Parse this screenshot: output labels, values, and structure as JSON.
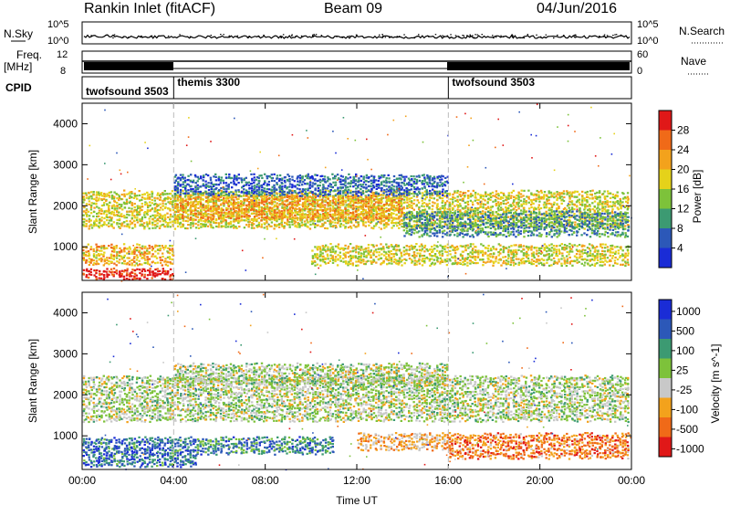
{
  "header": {
    "station": "Rankin Inlet (fitACF)",
    "beam": "Beam 09",
    "date": "04/Jun/2016"
  },
  "aux_panels": {
    "nsky_label": "N.Sky",
    "nsearch_label": "N.Search",
    "freq_label_top": "Freq.",
    "freq_label_bottom": "[MHz]",
    "nave_label": "Nave",
    "cpid_label": "CPID",
    "noise_left_ticks": [
      "10^5",
      "10^0"
    ],
    "noise_right_ticks": [
      "10^5",
      "10^0"
    ],
    "freq_left_ticks": [
      "12",
      "8"
    ],
    "freq_right_ticks": [
      "60",
      "0"
    ]
  },
  "cpid": [
    {
      "name": "twofsound 3503",
      "start_hour": 0,
      "end_hour": 4
    },
    {
      "name": "themis 3300",
      "start_hour": 4,
      "end_hour": 16
    },
    {
      "name": "twofsound 3503",
      "start_hour": 16,
      "end_hour": 24
    }
  ],
  "chart_data": [
    {
      "type": "heatmap",
      "title": "",
      "xlabel": "Time UT",
      "ylabel": "Slant Range [km]",
      "xlim": [
        0,
        24
      ],
      "ylim": [
        180,
        4500
      ],
      "x_ticks": [
        "00:00",
        "04:00",
        "08:00",
        "12:00",
        "16:00",
        "20:00",
        "00:00"
      ],
      "y_ticks": [
        "1000",
        "2000",
        "3000",
        "4000"
      ],
      "colorbar_label": "Power [dB]",
      "colorbar_ticks": [
        "4",
        "8",
        "12",
        "16",
        "20",
        "24",
        "28"
      ],
      "colorscale": [
        "#1a2cd6",
        "#2c58b8",
        "#3c9a72",
        "#7dc23a",
        "#e5d21a",
        "#f3a21c",
        "#f06a18",
        "#e01818"
      ],
      "value_range": [
        0,
        32
      ],
      "regions": [
        {
          "t0": 0,
          "t1": 24,
          "r0": 1500,
          "r1": 2400,
          "level": 0.55
        },
        {
          "t0": 4,
          "t1": 14,
          "r0": 1700,
          "r1": 2300,
          "level": 0.7
        },
        {
          "t0": 14,
          "t1": 24,
          "r0": 1300,
          "r1": 1900,
          "level": 0.3
        },
        {
          "t0": 0,
          "t1": 4,
          "r0": 600,
          "r1": 1100,
          "level": 0.65
        },
        {
          "t0": 0,
          "t1": 4,
          "r0": 180,
          "r1": 500,
          "level": 0.95
        },
        {
          "t0": 10,
          "t1": 24,
          "r0": 600,
          "r1": 1100,
          "level": 0.55
        },
        {
          "t0": 4,
          "t1": 16,
          "r0": 2300,
          "r1": 2800,
          "level": 0.2
        }
      ]
    },
    {
      "type": "heatmap",
      "title": "",
      "xlabel": "Time UT",
      "ylabel": "Slant Range [km]",
      "xlim": [
        0,
        24
      ],
      "ylim": [
        180,
        4500
      ],
      "x_ticks": [
        "00:00",
        "04:00",
        "08:00",
        "12:00",
        "16:00",
        "20:00",
        "00:00"
      ],
      "y_ticks": [
        "1000",
        "2000",
        "3000",
        "4000"
      ],
      "colorbar_label": "Velocity [m s^-1]",
      "colorbar_ticks": [
        "1000",
        "500",
        "100",
        "25",
        "-25",
        "-100",
        "-500",
        "-1000"
      ],
      "colorscale": [
        "#1a2cd6",
        "#2c58b8",
        "#3c9a72",
        "#7dc23a",
        "#c8c8c8",
        "#f3a21c",
        "#f06a18",
        "#e01818"
      ],
      "value_range": [
        -1000,
        1000
      ],
      "regions": [
        {
          "t0": 0,
          "t1": 24,
          "r0": 1400,
          "r1": 2500,
          "level": 0.5
        },
        {
          "t0": 4,
          "t1": 16,
          "r0": 2300,
          "r1": 2800,
          "level": 0.5
        },
        {
          "t0": 0,
          "t1": 5,
          "r0": 300,
          "r1": 1000,
          "level": 0.22
        },
        {
          "t0": 5,
          "t1": 11,
          "r0": 600,
          "r1": 1000,
          "level": 0.28
        },
        {
          "t0": 16,
          "t1": 24,
          "r0": 500,
          "r1": 1100,
          "level": 0.78
        },
        {
          "t0": 12,
          "t1": 16,
          "r0": 700,
          "r1": 1100,
          "level": 0.68
        }
      ]
    }
  ]
}
